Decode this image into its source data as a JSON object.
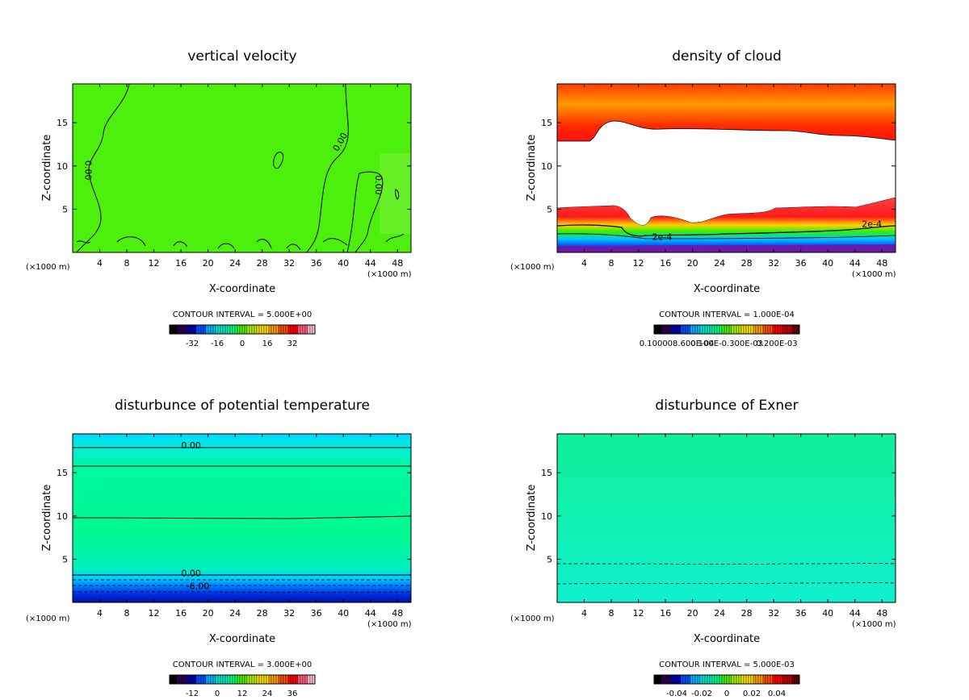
{
  "chart_data": [
    {
      "type": "contour",
      "title": "vertical velocity",
      "xlabel": "X-coordinate",
      "ylabel": "Z-coordinate",
      "x_unit": "(×1000 m)",
      "y_unit": "(×1000 m)",
      "xlim": [
        0,
        50
      ],
      "ylim": [
        0,
        19.5
      ],
      "xticks": [
        4,
        8,
        12,
        16,
        20,
        24,
        28,
        32,
        36,
        40,
        44,
        48
      ],
      "yticks": [
        5,
        10,
        15
      ],
      "fill_color": "#4cf00c",
      "contour_labels": [
        {
          "text": "0.00",
          "x": 2.3,
          "z": 9.5,
          "rotate": 90
        },
        {
          "text": "0.00",
          "x": 39.5,
          "z": 12.8,
          "rotate": -60
        },
        {
          "text": "0.00",
          "x": 45.2,
          "z": 7.8,
          "rotate": 90
        }
      ],
      "contour_interval": "CONTOUR INTERVAL = 5.000E+00",
      "colorbar": {
        "ticks": [
          "-32",
          "-16",
          "0",
          "16",
          "32"
        ],
        "colors": [
          "#000000",
          "#2a0050",
          "#0000b0",
          "#0050ff",
          "#00b4ff",
          "#00e8c8",
          "#00ff80",
          "#50f000",
          "#b0f000",
          "#ffe000",
          "#ffa000",
          "#ff5000",
          "#ff0000",
          "#ff6080",
          "#ffc0d0"
        ]
      }
    },
    {
      "type": "contour",
      "title": "density of cloud",
      "xlabel": "X-coordinate",
      "ylabel": "Z-coordinate",
      "x_unit": "(×1000 m)",
      "y_unit": "(×1000 m)",
      "xlim": [
        0,
        50
      ],
      "ylim": [
        0,
        19.5
      ],
      "xticks": [
        4,
        8,
        12,
        16,
        20,
        24,
        28,
        32,
        36,
        40,
        44,
        48
      ],
      "yticks": [
        5,
        10,
        15
      ],
      "contour_labels": [
        {
          "text": "2e-4",
          "x": 15.5,
          "z": 1.8,
          "rotate": 0
        },
        {
          "text": "2e-4",
          "x": 46.5,
          "z": 3.3,
          "rotate": 0
        }
      ],
      "contour_interval": "CONTOUR INTERVAL = 1.000E-04",
      "colorbar": {
        "ticks": [
          "0.100008.600E-04",
          "0.100E-0.300E-03",
          "0.200E-03"
        ],
        "colors": [
          "#000000",
          "#2a0050",
          "#0000b0",
          "#0050ff",
          "#00b4ff",
          "#00e8c8",
          "#00ff80",
          "#50f000",
          "#b0f000",
          "#ffe000",
          "#ffa000",
          "#ff5000",
          "#ff0000",
          "#c00000",
          "#600000"
        ]
      }
    },
    {
      "type": "contour",
      "title": "disturbunce of potential temperature",
      "xlabel": "X-coordinate",
      "ylabel": "Z-coordinate",
      "x_unit": "(×1000 m)",
      "y_unit": "(×1000 m)",
      "xlim": [
        0,
        50
      ],
      "ylim": [
        0,
        19.5
      ],
      "xticks": [
        4,
        8,
        12,
        16,
        20,
        24,
        28,
        32,
        36,
        40,
        44,
        48
      ],
      "yticks": [
        5,
        10,
        15
      ],
      "contour_labels": [
        {
          "text": "0.00",
          "x": 17.5,
          "z": 18.2,
          "rotate": 0
        },
        {
          "text": "0.00",
          "x": 17.5,
          "z": 3.4,
          "rotate": 0
        },
        {
          "text": "-6.00",
          "x": 18.5,
          "z": 1.9,
          "rotate": 0
        }
      ],
      "contour_interval": "CONTOUR INTERVAL = 3.000E+00",
      "colorbar": {
        "ticks": [
          "-12",
          "0",
          "12",
          "24",
          "36"
        ],
        "colors": [
          "#000000",
          "#2a0050",
          "#0000b0",
          "#0050ff",
          "#00b4ff",
          "#00e8c8",
          "#00ff80",
          "#50f000",
          "#b0f000",
          "#ffe000",
          "#ffa000",
          "#ff5000",
          "#ff0000",
          "#ff6080",
          "#ffc0d0"
        ]
      }
    },
    {
      "type": "contour",
      "title": "disturbunce of Exner",
      "xlabel": "X-coordinate",
      "ylabel": "Z-coordinate",
      "x_unit": "(×1000 m)",
      "y_unit": "(×1000 m)",
      "xlim": [
        0,
        50
      ],
      "ylim": [
        0,
        19.5
      ],
      "xticks": [
        4,
        8,
        12,
        16,
        20,
        24,
        28,
        32,
        36,
        40,
        44,
        48
      ],
      "yticks": [
        5,
        10,
        15
      ],
      "contour_labels": [],
      "contour_interval": "CONTOUR INTERVAL = 5.000E-03",
      "colorbar": {
        "ticks": [
          "-0.04",
          "-0.02",
          "0",
          "0.02",
          "0.04"
        ],
        "colors": [
          "#000000",
          "#2a0050",
          "#0000b0",
          "#0050ff",
          "#00b4ff",
          "#00e8c8",
          "#00ff80",
          "#50f000",
          "#b0f000",
          "#ffe000",
          "#ffa000",
          "#ff5000",
          "#ff0000",
          "#c00000",
          "#600000"
        ]
      }
    }
  ]
}
